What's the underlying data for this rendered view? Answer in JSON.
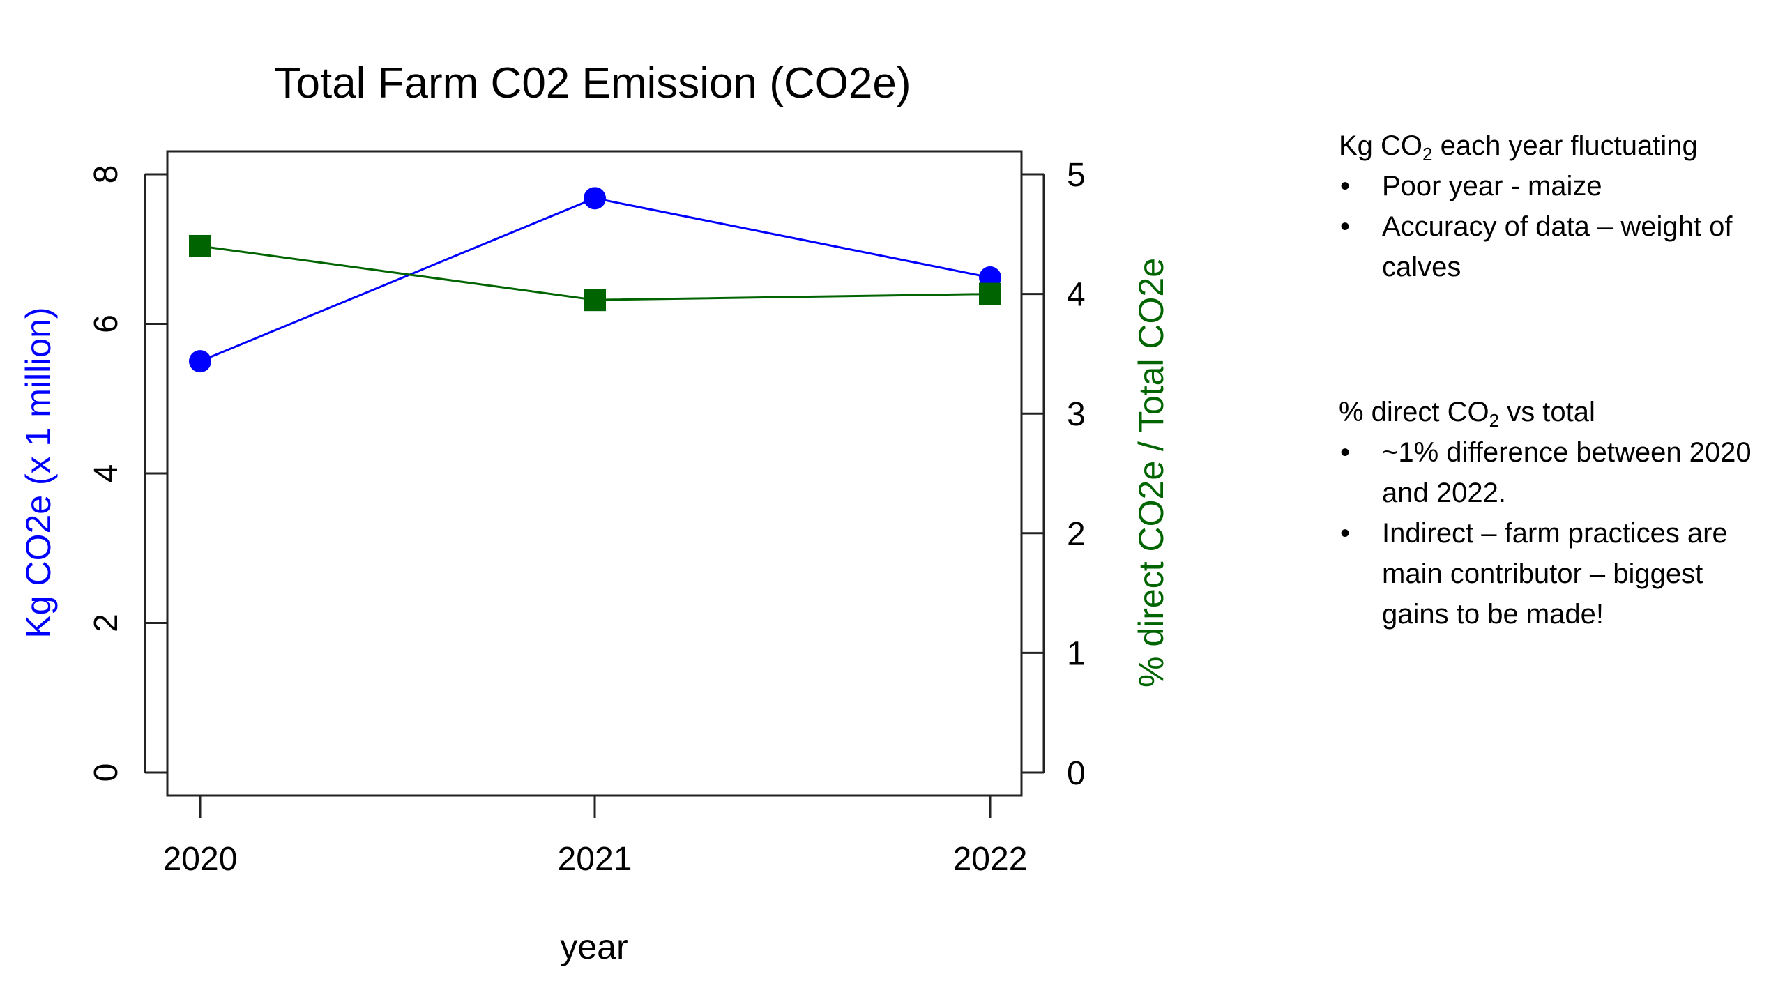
{
  "chart_data": {
    "type": "line",
    "title": "Total Farm C02 Emission (CO2e)",
    "xlabel": "year",
    "ylabel_left": "Kg CO2e (x 1 million)",
    "ylabel_right": "% direct CO2e / Total CO2e",
    "categories": [
      "2020",
      "2021",
      "2022"
    ],
    "y_left_ticks": [
      "0",
      "2",
      "4",
      "6",
      "8"
    ],
    "y_right_ticks": [
      "0",
      "1",
      "2",
      "3",
      "4",
      "5"
    ],
    "ylim_left": [
      0,
      8
    ],
    "ylim_right": [
      0,
      5
    ],
    "series": [
      {
        "axis": "left",
        "values": [
          5.5,
          7.68,
          6.62
        ],
        "color": "#0000ff",
        "marker": "circle"
      },
      {
        "axis": "right",
        "values": [
          4.4,
          3.95,
          4.0
        ],
        "color": "#006400",
        "marker": "square"
      }
    ],
    "grid": false
  },
  "notes": {
    "block1": {
      "head_pre": "Kg CO",
      "head_sub": "2",
      "head_post": " each year fluctuating",
      "items": [
        "Poor year - maize",
        "Accuracy of data – weight of calves"
      ]
    },
    "block2": {
      "head_pre": "% direct CO",
      "head_sub": "2",
      "head_post": " vs total",
      "items": [
        "~1% difference between 2020 and 2022.",
        "Indirect – farm practices are main contributor – biggest gains to be made!"
      ]
    }
  }
}
